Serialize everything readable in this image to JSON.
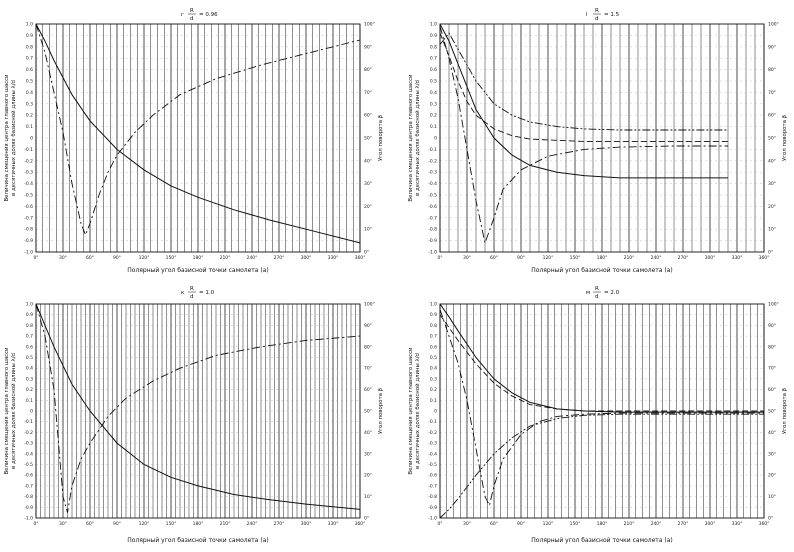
{
  "chart_data": [
    {
      "type": "line",
      "title_letter": "г",
      "ratio": "0.96",
      "xlabel": "Полярный угол базисной точки самолета (а)",
      "ylabel_left": [
        "Величина смещения центра главного шасси",
        "в десятичных долях базисной длины λ/d"
      ],
      "ylabel_right": "Угол поворота β",
      "xlim": [
        0,
        360
      ],
      "ylim": [
        -1,
        1
      ],
      "x_ticks": [
        "0°",
        "30°",
        "60°",
        "90°",
        "120°",
        "150°",
        "180°",
        "210°",
        "240°",
        "270°",
        "300°",
        "330°",
        "360°"
      ],
      "y_ticks": [
        "1.0",
        "0.9",
        "0.8",
        "0.7",
        "0.6",
        "0.5",
        "0.4",
        "0.3",
        "0.2",
        "0.1",
        "0",
        "-0.1",
        "-0.2",
        "-0.3",
        "-0.4",
        "-0.5",
        "-0.6",
        "-0.7",
        "-0.8",
        "-0.9",
        "-1.0"
      ],
      "right_ticks": [
        "0°",
        "10°",
        "20°",
        "30°",
        "40°",
        "50°",
        "60°",
        "70°",
        "80°",
        "90°",
        "100°"
      ],
      "series": [
        {
          "style": "solid",
          "x": [
            0,
            10,
            20,
            40,
            60,
            90,
            120,
            150,
            180,
            220,
            260,
            300,
            360
          ],
          "y": [
            1.0,
            0.85,
            0.68,
            0.38,
            0.15,
            -0.1,
            -0.28,
            -0.42,
            -0.52,
            -0.63,
            -0.72,
            -0.8,
            -0.92
          ]
        },
        {
          "style": "dashdot",
          "x": [
            0,
            10,
            20,
            30,
            40,
            50,
            55,
            60,
            70,
            80,
            90,
            110,
            130,
            160,
            200,
            250,
            300,
            340,
            360
          ],
          "y": [
            1.0,
            0.75,
            0.4,
            0.05,
            -0.4,
            -0.75,
            -0.85,
            -0.75,
            -0.5,
            -0.3,
            -0.15,
            0.05,
            0.2,
            0.38,
            0.52,
            0.64,
            0.74,
            0.82,
            0.86
          ]
        }
      ]
    },
    {
      "type": "line",
      "title_letter": "i",
      "ratio": "1.5",
      "xlabel": "Полярный угол базисной точки самолета (а)",
      "ylabel_left": [
        "Величина смещения центра главного шасси",
        "в десятичных долях базисной длины λ/d"
      ],
      "ylabel_right": "Угол поворота β",
      "xlim": [
        0,
        360
      ],
      "ylim": [
        -1,
        1
      ],
      "x_ticks": [
        "0°",
        "30°",
        "60°",
        "90°",
        "120°",
        "150°",
        "180°",
        "210°",
        "240°",
        "270°",
        "300°",
        "330°",
        "360°"
      ],
      "y_ticks": [
        "1.0",
        "0.9",
        "0.8",
        "0.7",
        "0.6",
        "0.5",
        "0.4",
        "0.3",
        "0.2",
        "0.1",
        "0",
        "-0.1",
        "-0.2",
        "-0.3",
        "-0.4",
        "-0.5",
        "-0.6",
        "-0.7",
        "-0.8",
        "-0.9",
        "-1.0"
      ],
      "right_ticks": [
        "0°",
        "10°",
        "20°",
        "30°",
        "40°",
        "50°",
        "60°",
        "70°",
        "80°",
        "90°",
        "100°"
      ],
      "series": [
        {
          "style": "solid",
          "x": [
            0,
            10,
            20,
            30,
            40,
            60,
            80,
            100,
            130,
            160,
            200,
            260,
            320
          ],
          "y": [
            1.0,
            0.85,
            0.65,
            0.45,
            0.25,
            0.0,
            -0.15,
            -0.24,
            -0.3,
            -0.33,
            -0.35,
            -0.35,
            -0.35
          ]
        },
        {
          "style": "dashed",
          "x": [
            0,
            10,
            20,
            30,
            40,
            60,
            80,
            100,
            130,
            160,
            200,
            260,
            320
          ],
          "y": [
            0.92,
            0.72,
            0.5,
            0.32,
            0.2,
            0.08,
            0.02,
            -0.01,
            -0.02,
            -0.03,
            -0.03,
            -0.03,
            -0.03
          ]
        },
        {
          "style": "dashdot",
          "x": [
            0,
            10,
            20,
            30,
            40,
            50,
            60,
            70,
            90,
            120,
            160,
            200,
            260,
            320
          ],
          "y": [
            0.98,
            0.7,
            0.35,
            -0.1,
            -0.55,
            -0.92,
            -0.7,
            -0.45,
            -0.28,
            -0.16,
            -0.1,
            -0.08,
            -0.07,
            -0.07
          ]
        },
        {
          "style": "dashdotdot",
          "x": [
            0,
            10,
            20,
            40,
            60,
            80,
            100,
            130,
            160,
            200,
            260,
            320
          ],
          "y": [
            0.82,
            0.92,
            0.78,
            0.5,
            0.3,
            0.2,
            0.14,
            0.1,
            0.08,
            0.07,
            0.07,
            0.07
          ]
        }
      ]
    },
    {
      "type": "line",
      "title_letter": "к",
      "ratio": "1.0",
      "xlabel": "Полярный угол базисной точки самолета (а)",
      "ylabel_left": [
        "Величина смещения центра главного шасси",
        "в десятичных долях базисной длины λ/d"
      ],
      "ylabel_right": "Угол поворота β",
      "xlim": [
        0,
        360
      ],
      "ylim": [
        -1,
        1
      ],
      "x_ticks": [
        "0°",
        "30°",
        "60°",
        "90°",
        "120°",
        "150°",
        "180°",
        "210°",
        "240°",
        "270°",
        "300°",
        "330°",
        "360°"
      ],
      "y_ticks": [
        "1.0",
        "0.9",
        "0.8",
        "0.7",
        "0.6",
        "0.5",
        "0.4",
        "0.3",
        "0.2",
        "0.1",
        "0",
        "-0.1",
        "-0.2",
        "-0.3",
        "-0.4",
        "-0.5",
        "-0.6",
        "-0.7",
        "-0.8",
        "-0.9",
        "-1.0"
      ],
      "right_ticks": [
        "0°",
        "10°",
        "20°",
        "30°",
        "40°",
        "50°",
        "60°",
        "70°",
        "80°",
        "90°",
        "100°"
      ],
      "series": [
        {
          "style": "solid",
          "x": [
            0,
            10,
            20,
            40,
            60,
            90,
            120,
            150,
            180,
            220,
            260,
            300,
            360
          ],
          "y": [
            1.0,
            0.8,
            0.6,
            0.25,
            0.0,
            -0.3,
            -0.5,
            -0.62,
            -0.7,
            -0.78,
            -0.83,
            -0.87,
            -0.92
          ]
        },
        {
          "style": "dashdot",
          "x": [
            0,
            10,
            20,
            25,
            30,
            35,
            40,
            50,
            60,
            80,
            100,
            130,
            160,
            200,
            250,
            300,
            360
          ],
          "y": [
            1.0,
            0.7,
            0.2,
            -0.3,
            -0.8,
            -0.95,
            -0.7,
            -0.45,
            -0.3,
            -0.05,
            0.12,
            0.28,
            0.4,
            0.52,
            0.6,
            0.66,
            0.7
          ]
        }
      ]
    },
    {
      "type": "line",
      "title_letter": "м",
      "ratio": "2.0",
      "xlabel": "Полярный угол базисной точки самолета (а)",
      "ylabel_left": [
        "Величина смещения центра главного шасси",
        "в десятичных долях базисной длины λ/d"
      ],
      "ylabel_right": "Угол поворота β",
      "xlim": [
        0,
        360
      ],
      "ylim": [
        -1,
        1
      ],
      "x_ticks": [
        "0°",
        "30°",
        "60°",
        "90°",
        "120°",
        "150°",
        "180°",
        "210°",
        "240°",
        "270°",
        "300°",
        "330°",
        "360°"
      ],
      "y_ticks": [
        "1.0",
        "0.9",
        "0.8",
        "0.7",
        "0.6",
        "0.5",
        "0.4",
        "0.3",
        "0.2",
        "0.1",
        "0",
        "-0.1",
        "-0.2",
        "-0.3",
        "-0.4",
        "-0.5",
        "-0.6",
        "-0.7",
        "-0.8",
        "-0.9",
        "-1.0"
      ],
      "right_ticks": [
        "0°",
        "10°",
        "20°",
        "30°",
        "40°",
        "50°",
        "60°",
        "70°",
        "80°",
        "90°",
        "100°"
      ],
      "series": [
        {
          "style": "solid",
          "x": [
            0,
            10,
            20,
            40,
            60,
            80,
            100,
            130,
            160,
            200,
            260,
            320,
            360
          ],
          "y": [
            1.0,
            0.88,
            0.75,
            0.5,
            0.3,
            0.17,
            0.08,
            0.02,
            0.0,
            -0.01,
            -0.01,
            -0.01,
            -0.01
          ]
        },
        {
          "style": "dashed",
          "x": [
            0,
            10,
            20,
            40,
            60,
            80,
            100,
            130,
            160,
            200,
            260,
            320,
            360
          ],
          "y": [
            0.9,
            0.78,
            0.66,
            0.44,
            0.26,
            0.14,
            0.06,
            0.02,
            0.0,
            0.0,
            0.0,
            0.0,
            0.0
          ]
        },
        {
          "style": "dashdot",
          "x": [
            0,
            10,
            20,
            30,
            40,
            50,
            55,
            60,
            70,
            90,
            110,
            130,
            160,
            200,
            260,
            320,
            360
          ],
          "y": [
            0.95,
            0.7,
            0.45,
            0.1,
            -0.35,
            -0.8,
            -0.88,
            -0.7,
            -0.45,
            -0.22,
            -0.1,
            -0.05,
            -0.03,
            -0.02,
            -0.02,
            -0.02,
            -0.02
          ]
        },
        {
          "style": "dashdotdot",
          "x": [
            0,
            10,
            20,
            40,
            60,
            80,
            100,
            130,
            160,
            200,
            260,
            320,
            360
          ],
          "y": [
            -1.0,
            -0.92,
            -0.82,
            -0.6,
            -0.4,
            -0.25,
            -0.14,
            -0.07,
            -0.04,
            -0.03,
            -0.03,
            -0.03,
            -0.03
          ]
        }
      ]
    }
  ]
}
